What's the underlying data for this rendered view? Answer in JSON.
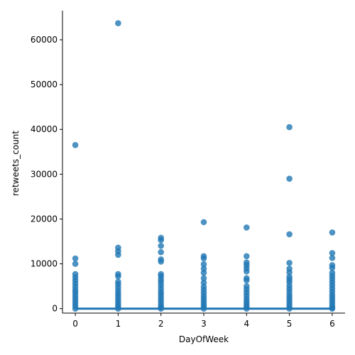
{
  "chart_data": {
    "type": "scatter",
    "title": "",
    "xlabel": "DayOfWeek",
    "ylabel": "retweets_count",
    "xlim": [
      -0.3,
      6.3
    ],
    "ylim": [
      -1000,
      66500
    ],
    "x_ticks": [
      0,
      1,
      2,
      3,
      4,
      5,
      6
    ],
    "y_ticks": [
      0,
      10000,
      20000,
      30000,
      40000,
      50000,
      60000
    ],
    "grid": false,
    "legend": "none",
    "color": "#1f77b4",
    "regression_line": {
      "x": [
        0,
        6
      ],
      "y": [
        0,
        0
      ]
    },
    "series": [
      {
        "points": [
          {
            "x": 0,
            "y": 36500
          },
          {
            "x": 0,
            "y": 11200
          },
          {
            "x": 0,
            "y": 10000
          },
          {
            "x": 0,
            "y": 7700
          },
          {
            "x": 0,
            "y": 7000
          },
          {
            "x": 0,
            "y": 6300
          },
          {
            "x": 0,
            "y": 5600
          },
          {
            "x": 0,
            "y": 4900
          },
          {
            "x": 0,
            "y": 4200
          },
          {
            "x": 0,
            "y": 3600
          },
          {
            "x": 0,
            "y": 3000
          },
          {
            "x": 0,
            "y": 2400
          },
          {
            "x": 0,
            "y": 1800
          },
          {
            "x": 0,
            "y": 1200
          },
          {
            "x": 0,
            "y": 600
          },
          {
            "x": 0,
            "y": 0
          },
          {
            "x": 1,
            "y": 63700
          },
          {
            "x": 1,
            "y": 13600
          },
          {
            "x": 1,
            "y": 12800
          },
          {
            "x": 1,
            "y": 12000
          },
          {
            "x": 1,
            "y": 7700
          },
          {
            "x": 1,
            "y": 7200
          },
          {
            "x": 1,
            "y": 6000
          },
          {
            "x": 1,
            "y": 5400
          },
          {
            "x": 1,
            "y": 4700
          },
          {
            "x": 1,
            "y": 4000
          },
          {
            "x": 1,
            "y": 3400
          },
          {
            "x": 1,
            "y": 2800
          },
          {
            "x": 1,
            "y": 2200
          },
          {
            "x": 1,
            "y": 1600
          },
          {
            "x": 1,
            "y": 1000
          },
          {
            "x": 1,
            "y": 500
          },
          {
            "x": 1,
            "y": 0
          },
          {
            "x": 2,
            "y": 15800
          },
          {
            "x": 2,
            "y": 15300
          },
          {
            "x": 2,
            "y": 14000
          },
          {
            "x": 2,
            "y": 12600
          },
          {
            "x": 2,
            "y": 11000
          },
          {
            "x": 2,
            "y": 10500
          },
          {
            "x": 2,
            "y": 7700
          },
          {
            "x": 2,
            "y": 7200
          },
          {
            "x": 2,
            "y": 6500
          },
          {
            "x": 2,
            "y": 5900
          },
          {
            "x": 2,
            "y": 5200
          },
          {
            "x": 2,
            "y": 4500
          },
          {
            "x": 2,
            "y": 3800
          },
          {
            "x": 2,
            "y": 3200
          },
          {
            "x": 2,
            "y": 2600
          },
          {
            "x": 2,
            "y": 2000
          },
          {
            "x": 2,
            "y": 1400
          },
          {
            "x": 2,
            "y": 800
          },
          {
            "x": 2,
            "y": 300
          },
          {
            "x": 2,
            "y": 0
          },
          {
            "x": 3,
            "y": 19300
          },
          {
            "x": 3,
            "y": 11700
          },
          {
            "x": 3,
            "y": 11200
          },
          {
            "x": 3,
            "y": 9900
          },
          {
            "x": 3,
            "y": 8900
          },
          {
            "x": 3,
            "y": 8000
          },
          {
            "x": 3,
            "y": 6800
          },
          {
            "x": 3,
            "y": 5800
          },
          {
            "x": 3,
            "y": 4900
          },
          {
            "x": 3,
            "y": 4200
          },
          {
            "x": 3,
            "y": 3500
          },
          {
            "x": 3,
            "y": 2800
          },
          {
            "x": 3,
            "y": 2200
          },
          {
            "x": 3,
            "y": 1600
          },
          {
            "x": 3,
            "y": 1000
          },
          {
            "x": 3,
            "y": 500
          },
          {
            "x": 3,
            "y": 0
          },
          {
            "x": 4,
            "y": 18100
          },
          {
            "x": 4,
            "y": 11700
          },
          {
            "x": 4,
            "y": 10300
          },
          {
            "x": 4,
            "y": 9700
          },
          {
            "x": 4,
            "y": 9000
          },
          {
            "x": 4,
            "y": 8300
          },
          {
            "x": 4,
            "y": 6800
          },
          {
            "x": 4,
            "y": 6300
          },
          {
            "x": 4,
            "y": 5000
          },
          {
            "x": 4,
            "y": 4300
          },
          {
            "x": 4,
            "y": 3600
          },
          {
            "x": 4,
            "y": 2900
          },
          {
            "x": 4,
            "y": 2200
          },
          {
            "x": 4,
            "y": 1600
          },
          {
            "x": 4,
            "y": 1000
          },
          {
            "x": 4,
            "y": 500
          },
          {
            "x": 4,
            "y": 0
          },
          {
            "x": 5,
            "y": 40500
          },
          {
            "x": 5,
            "y": 29000
          },
          {
            "x": 5,
            "y": 16600
          },
          {
            "x": 5,
            "y": 10200
          },
          {
            "x": 5,
            "y": 8900
          },
          {
            "x": 5,
            "y": 8100
          },
          {
            "x": 5,
            "y": 7100
          },
          {
            "x": 5,
            "y": 6500
          },
          {
            "x": 5,
            "y": 5900
          },
          {
            "x": 5,
            "y": 5100
          },
          {
            "x": 5,
            "y": 4400
          },
          {
            "x": 5,
            "y": 3700
          },
          {
            "x": 5,
            "y": 3000
          },
          {
            "x": 5,
            "y": 2400
          },
          {
            "x": 5,
            "y": 1800
          },
          {
            "x": 5,
            "y": 1200
          },
          {
            "x": 5,
            "y": 600
          },
          {
            "x": 5,
            "y": 0
          },
          {
            "x": 6,
            "y": 17000
          },
          {
            "x": 6,
            "y": 12400
          },
          {
            "x": 6,
            "y": 11300
          },
          {
            "x": 6,
            "y": 9700
          },
          {
            "x": 6,
            "y": 9100
          },
          {
            "x": 6,
            "y": 8000
          },
          {
            "x": 6,
            "y": 7300
          },
          {
            "x": 6,
            "y": 6600
          },
          {
            "x": 6,
            "y": 5900
          },
          {
            "x": 6,
            "y": 5200
          },
          {
            "x": 6,
            "y": 4500
          },
          {
            "x": 6,
            "y": 3800
          },
          {
            "x": 6,
            "y": 3100
          },
          {
            "x": 6,
            "y": 2500
          },
          {
            "x": 6,
            "y": 1900
          },
          {
            "x": 6,
            "y": 1300
          },
          {
            "x": 6,
            "y": 700
          },
          {
            "x": 6,
            "y": 200
          },
          {
            "x": 6,
            "y": 0
          }
        ]
      }
    ]
  }
}
